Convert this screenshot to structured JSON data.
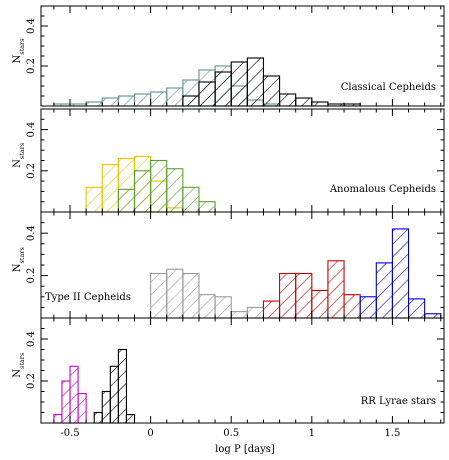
{
  "chart_data": [
    {
      "type": "bar",
      "title": "",
      "xlabel": "",
      "ylabel": "N_stars",
      "xlim": [
        -0.68,
        1.82
      ],
      "ylim": [
        0,
        0.5
      ],
      "label": "Classical Cepheids",
      "series": [
        {
          "color": "#5f8f8f",
          "bin_width": 0.1,
          "bin_starts": [
            -0.6,
            -0.5,
            -0.4,
            -0.3,
            -0.2,
            -0.1,
            0.0,
            0.1,
            0.2,
            0.3,
            0.4,
            0.5,
            0.6,
            0.7
          ],
          "values": [
            0.01,
            0.01,
            0.02,
            0.04,
            0.05,
            0.06,
            0.07,
            0.09,
            0.13,
            0.18,
            0.2,
            0.1,
            0.03,
            0.01
          ]
        },
        {
          "color": "#000000",
          "bin_width": 0.1,
          "bin_starts": [
            0.2,
            0.3,
            0.4,
            0.5,
            0.6,
            0.7,
            0.8,
            0.9,
            1.0,
            1.1,
            1.2
          ],
          "values": [
            0.05,
            0.12,
            0.17,
            0.22,
            0.24,
            0.15,
            0.06,
            0.04,
            0.02,
            0.01,
            0.01
          ]
        }
      ]
    },
    {
      "type": "bar",
      "xlabel": "",
      "ylabel": "N_stars",
      "xlim": [
        -0.68,
        1.82
      ],
      "ylim": [
        0,
        0.5
      ],
      "label": "Anomalous Cepheids",
      "series": [
        {
          "color": "#e6c200",
          "bin_width": 0.1,
          "bin_starts": [
            -0.4,
            -0.3,
            -0.2,
            -0.1,
            0.0,
            0.1
          ],
          "values": [
            0.12,
            0.23,
            0.26,
            0.27,
            0.15,
            0.02
          ]
        },
        {
          "color": "#5aa02c",
          "bin_width": 0.1,
          "bin_starts": [
            -0.2,
            -0.1,
            0.0,
            0.1,
            0.2,
            0.3
          ],
          "values": [
            0.11,
            0.2,
            0.25,
            0.21,
            0.12,
            0.05
          ]
        }
      ]
    },
    {
      "type": "bar",
      "xlabel": "",
      "ylabel": "N_stars",
      "xlim": [
        -0.68,
        1.82
      ],
      "ylim": [
        0,
        0.5
      ],
      "label": "Type II Cepheids",
      "series": [
        {
          "color": "#9a9a9a",
          "bin_width": 0.1,
          "bin_starts": [
            0.0,
            0.1,
            0.2,
            0.3,
            0.4,
            0.5,
            0.6
          ],
          "values": [
            0.21,
            0.23,
            0.21,
            0.11,
            0.1,
            0.03,
            0.05
          ]
        },
        {
          "color": "#cc0000",
          "bin_width": 0.1,
          "bin_starts": [
            0.7,
            0.8,
            0.9,
            1.0,
            1.1,
            1.2
          ],
          "values": [
            0.08,
            0.21,
            0.21,
            0.13,
            0.27,
            0.11
          ]
        },
        {
          "color": "#0000cc",
          "bin_width": 0.1,
          "bin_starts": [
            1.3,
            1.4,
            1.5,
            1.6,
            1.7
          ],
          "values": [
            0.1,
            0.26,
            0.42,
            0.09,
            0.02
          ]
        }
      ]
    },
    {
      "type": "bar",
      "xlabel": "log P [days]",
      "ylabel": "N_stars",
      "xlim": [
        -0.68,
        1.82
      ],
      "ylim": [
        0,
        0.5
      ],
      "label": "RR Lyrae stars",
      "series": [
        {
          "color": "#cc00cc",
          "bin_width": 0.05,
          "bin_starts": [
            -0.6,
            -0.55,
            -0.5,
            -0.45
          ],
          "values": [
            0.04,
            0.2,
            0.27,
            0.14
          ]
        },
        {
          "color": "#000000",
          "bin_width": 0.05,
          "bin_starts": [
            -0.35,
            -0.3,
            -0.25,
            -0.2,
            -0.15
          ],
          "values": [
            0.05,
            0.15,
            0.27,
            0.35,
            0.04
          ]
        }
      ]
    }
  ],
  "xaxis": {
    "label": "log P [days]",
    "ticks": [
      -0.5,
      0,
      0.5,
      1,
      1.5
    ],
    "tick_labels": [
      "-0.5",
      "0",
      "0.5",
      "1",
      "1.5"
    ]
  },
  "yaxis": {
    "ticks": [
      0.2,
      0.4
    ],
    "tick_labels": [
      "0.2",
      "0.4"
    ],
    "label_main": "N",
    "label_sub": "stars"
  }
}
